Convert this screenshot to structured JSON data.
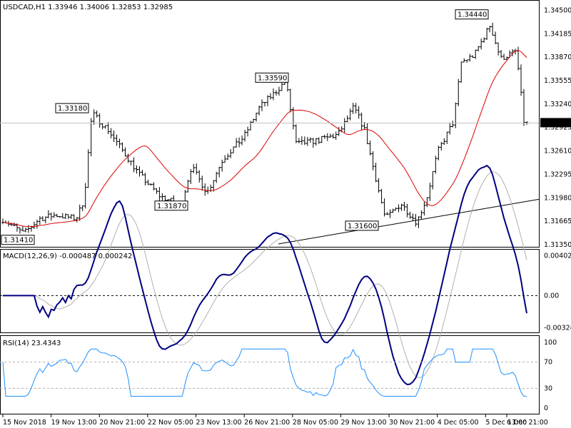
{
  "chart_data": [
    {
      "type": "ohlc",
      "title": "USDCAD,H1  1.33946 1.34006 1.32853 1.32985",
      "ylim": [
        1.3135,
        1.346
      ],
      "y_ticks": [
        "1.34500",
        "1.34185",
        "1.33870",
        "1.33555",
        "1.33240",
        "1.32925",
        "1.32610",
        "1.32295",
        "1.31980",
        "1.31665",
        "1.31350"
      ],
      "y_tick_values": [
        1.345,
        1.34185,
        1.3387,
        1.33555,
        1.3324,
        1.32925,
        1.3261,
        1.32295,
        1.3198,
        1.31665,
        1.3135
      ],
      "current_price": {
        "label": "1.32985",
        "value": 1.32985
      },
      "moving_average_color": "#dd0000",
      "series_color": "#000000",
      "annotations": [
        {
          "label": "1.31410",
          "value": 1.3141
        },
        {
          "label": "1.33180",
          "value": 1.3318
        },
        {
          "label": "1.31870",
          "value": 1.3187
        },
        {
          "label": "1.33590",
          "value": 1.3359
        },
        {
          "label": "1.31600",
          "value": 1.316
        },
        {
          "label": "1.34440",
          "value": 1.3444
        }
      ],
      "trendline": [
        {
          "x": "28 Nov 05:00",
          "y": 1.3136
        },
        {
          "x": "6 Dec 21:00",
          "y": 1.3196
        }
      ]
    },
    {
      "type": "line",
      "title": "MACD(12,26,9) -0.000487 0.000242",
      "ylim": [
        -0.0035,
        0.0042
      ],
      "y_ticks": [
        "0.004027",
        "0.00",
        "-0.003249"
      ],
      "y_tick_values": [
        0.004027,
        0.0,
        -0.003249
      ],
      "zero_line": 0.0,
      "series_colors": {
        "macd": "#000080",
        "signal": "#b0b0b0"
      }
    },
    {
      "type": "line",
      "title": "RSI(14) 23.4343",
      "ylim": [
        0,
        100
      ],
      "y_ticks": [
        "100",
        "70",
        "30",
        "0"
      ],
      "y_tick_values": [
        100,
        70,
        30,
        0
      ],
      "levels": [
        70,
        30
      ],
      "series_color": "#1e90ff"
    }
  ],
  "x_ticks": [
    "15 Nov 2018",
    "19 Nov 13:00",
    "20 Nov 21:00",
    "22 Nov 05:00",
    "23 Nov 13:00",
    "26 Nov 21:00",
    "28 Nov 05:00",
    "29 Nov 13:00",
    "30 Nov 21:00",
    "4 Dec 05:00",
    "5 Dec 13:00",
    "6 Dec 21:00"
  ]
}
